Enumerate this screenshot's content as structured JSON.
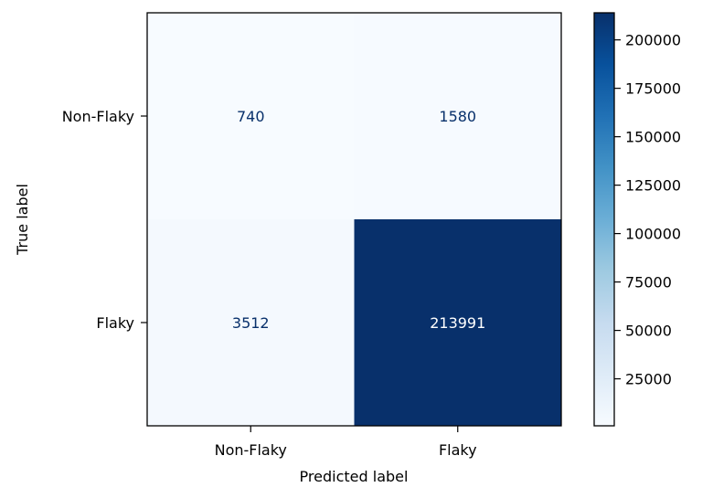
{
  "chart_data": {
    "type": "heatmap",
    "title": "",
    "xlabel": "Predicted label",
    "ylabel": "True label",
    "x_categories": [
      "Non-Flaky",
      "Flaky"
    ],
    "y_categories": [
      "Non-Flaky",
      "Flaky"
    ],
    "values": [
      [
        740,
        1580
      ],
      [
        3512,
        213991
      ]
    ],
    "colormap": "Blues",
    "color_low": "#f7fbff",
    "color_high": "#08306b",
    "text_dark": "#08306b",
    "text_light": "#ffffff",
    "colorbar": {
      "min": 740,
      "max": 213991,
      "ticks": [
        25000,
        50000,
        75000,
        100000,
        125000,
        150000,
        175000,
        200000
      ],
      "tick_labels": [
        "25000",
        "50000",
        "75000",
        "100000",
        "125000",
        "150000",
        "175000",
        "200000"
      ]
    },
    "grid": false
  }
}
